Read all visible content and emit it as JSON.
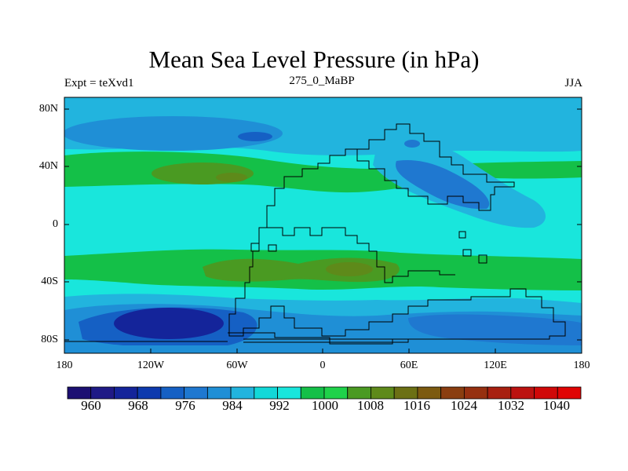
{
  "title": "Mean Sea Level Pressure (in hPa)",
  "subtitle_left": "Expt = teXvd1",
  "subtitle_center": "275_0_MaBP",
  "subtitle_right": "JJA",
  "y_ticks": [
    "80N",
    "40N",
    "0",
    "40S",
    "80S"
  ],
  "x_ticks": [
    "180",
    "120W",
    "60W",
    "0",
    "60E",
    "120E",
    "180"
  ],
  "colorbar": {
    "labels": [
      "960",
      "968",
      "976",
      "984",
      "992",
      "1000",
      "1008",
      "1016",
      "1024",
      "1032",
      "1040"
    ],
    "colors": [
      "#1c0f72",
      "#1f1a86",
      "#14249a",
      "#0d3aae",
      "#1560c4",
      "#1f78d0",
      "#1f8fd6",
      "#22b4de",
      "#12d8d8",
      "#19e6dc",
      "#14c048",
      "#1fd24a",
      "#4a9a22",
      "#5e8a1a",
      "#6c7014",
      "#7c5a10",
      "#8a3e10",
      "#963010",
      "#a82010",
      "#bc1210",
      "#d00808",
      "#e00404"
    ]
  },
  "colors": {
    "land_outline": "#000000",
    "contour_land_level": "#0b8fd2"
  }
}
